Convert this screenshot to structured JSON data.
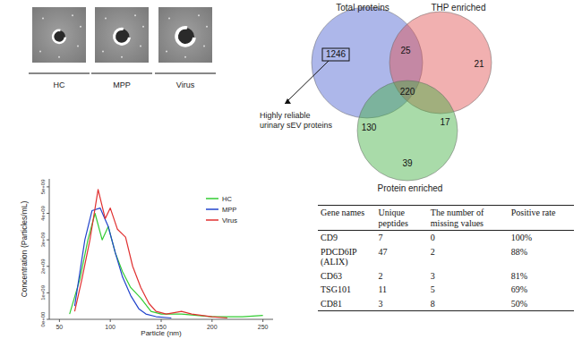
{
  "micrographs": {
    "labels": [
      "HC",
      "MPP",
      "Virus"
    ]
  },
  "chart_data": {
    "type": "line",
    "xlabel": "Particle (nm)",
    "ylabel": "Concentration (Particles/mL)",
    "xlim": [
      40,
      260
    ],
    "xticks": [
      50,
      100,
      150,
      200,
      250
    ],
    "ylim": [
      0,
      5300000000.0
    ],
    "yticks": [
      {
        "value": 0,
        "label": "0e+00"
      },
      {
        "value": 1000000000.0,
        "label": "1e+09"
      },
      {
        "value": 2000000000.0,
        "label": "2e+09"
      },
      {
        "value": 3000000000.0,
        "label": "3e+09"
      },
      {
        "value": 4000000000.0,
        "label": "4e+09"
      },
      {
        "value": 5000000000.0,
        "label": "5e+09"
      }
    ],
    "grid": false,
    "legend": "top-right",
    "series": [
      {
        "name": "HC",
        "color": "#33cc33",
        "x": [
          60,
          70,
          78,
          85,
          92,
          98,
          105,
          112,
          120,
          130,
          140,
          150,
          170,
          200,
          230,
          250
        ],
        "values": [
          200000000.0,
          1500000000.0,
          3000000000.0,
          4000000000.0,
          3000000000.0,
          3500000000.0,
          2500000000.0,
          1800000000.0,
          1200000000.0,
          800000000.0,
          300000000.0,
          200000000.0,
          200000000.0,
          100000000.0,
          100000000.0,
          150000000.0
        ]
      },
      {
        "name": "MPP",
        "color": "#2244cc",
        "x": [
          65,
          75,
          82,
          90,
          98,
          105,
          112,
          120,
          128,
          135,
          145,
          160
        ],
        "values": [
          500000000.0,
          3000000000.0,
          4100000000.0,
          4200000000.0,
          3500000000.0,
          2500000000.0,
          1600000000.0,
          900000000.0,
          400000000.0,
          200000000.0,
          100000000.0,
          50000000.0
        ]
      },
      {
        "name": "Virus",
        "color": "#e03030",
        "x": [
          65,
          72,
          80,
          88,
          95,
          100,
          107,
          115,
          122,
          130,
          138,
          145,
          155,
          170,
          180,
          200,
          215
        ],
        "values": [
          300000000.0,
          1500000000.0,
          3000000000.0,
          4900000000.0,
          3800000000.0,
          4200000000.0,
          3400000000.0,
          3100000000.0,
          2000000000.0,
          1200000000.0,
          600000000.0,
          300000000.0,
          200000000.0,
          300000000.0,
          200000000.0,
          100000000.0,
          50000000.0
        ]
      }
    ]
  },
  "venn": {
    "sets": [
      {
        "label": "Total proteins",
        "color": "#4a5fd0"
      },
      {
        "label": "THP enriched",
        "color": "#e05050"
      },
      {
        "label": "Protein enriched",
        "color": "#40b040"
      }
    ],
    "regions": [
      1246,
      25,
      21,
      220,
      130,
      17,
      39
    ],
    "annotation": [
      "Highly reliable",
      "urinary sEV proteins"
    ]
  },
  "table": {
    "header": [
      "Gene names",
      "Unique peptides",
      "The number of missing values",
      "Positive rate"
    ],
    "rows": [
      [
        "CD9",
        "7",
        "0",
        "100%"
      ],
      [
        "PDCD6IP (ALIX)",
        "47",
        "2",
        "88%"
      ],
      [
        "CD63",
        "2",
        "3",
        "81%"
      ],
      [
        "TSG101",
        "11",
        "5",
        "69%"
      ],
      [
        "CD81",
        "3",
        "8",
        "50%"
      ]
    ]
  }
}
